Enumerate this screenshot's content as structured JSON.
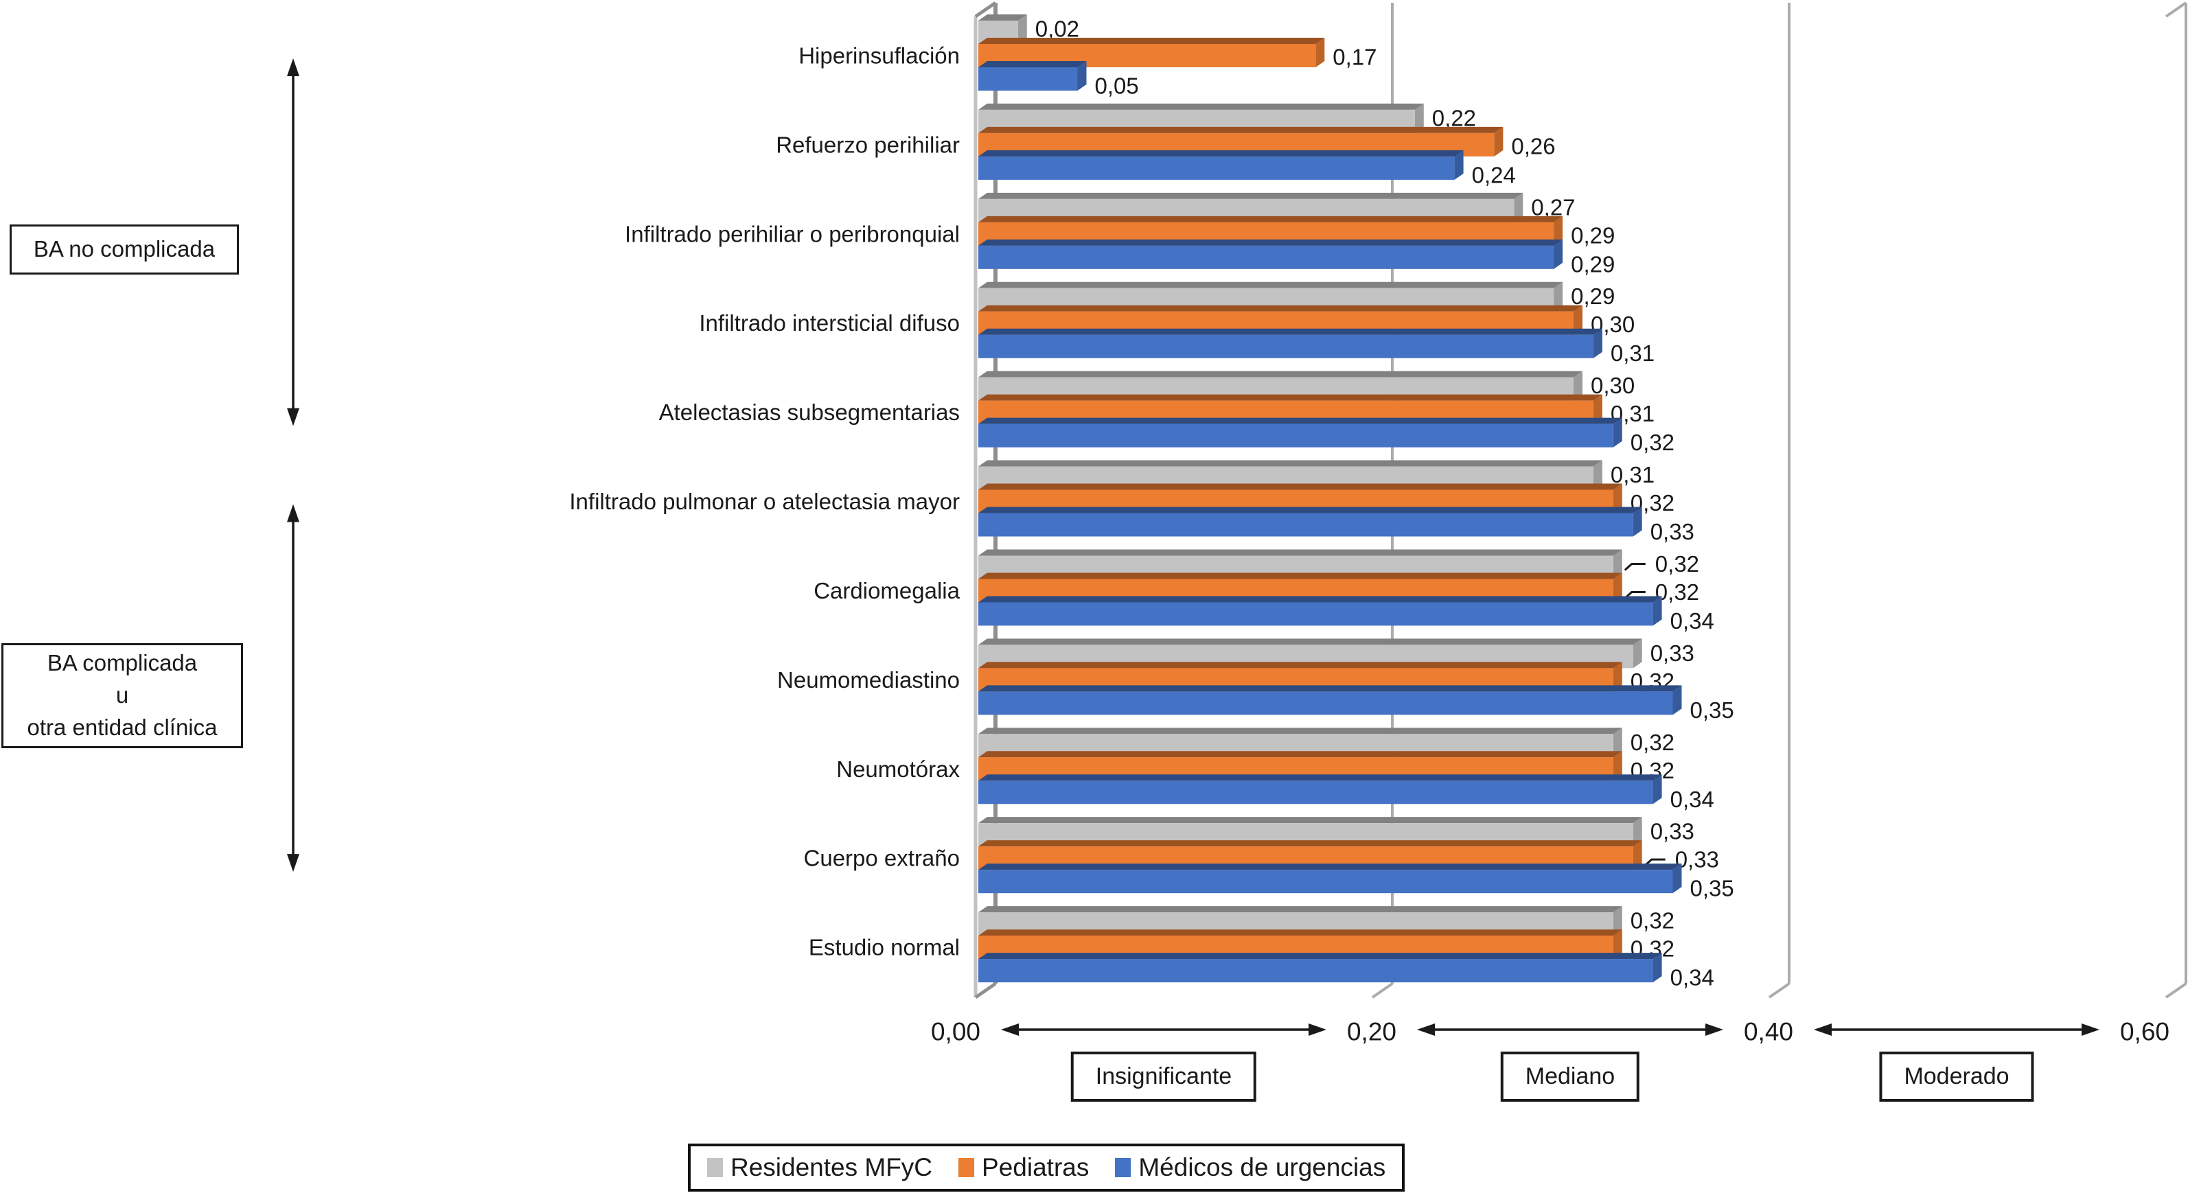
{
  "figure": {
    "background": "#ffffff"
  },
  "annotations": {
    "box1": {
      "label": "BA no complicada"
    },
    "box2": {
      "lines": [
        "BA complicada",
        "u",
        "otra entidad clínica"
      ]
    }
  },
  "chart_data": {
    "type": "bar",
    "orientation": "horizontal",
    "style": "3d",
    "decimal_separator": ",",
    "categories": [
      "Hiperinsuflación",
      "Refuerzo perihiliar",
      "Infiltrado perihiliar o peribronquial",
      "Infiltrado intersticial difuso",
      "Atelectasias subsegmentarias",
      "Infiltrado pulmonar o atelectasia mayor",
      "Cardiomegalia",
      "Neumomediastino",
      "Neumotórax",
      "Cuerpo extraño",
      "Estudio normal"
    ],
    "series": [
      {
        "name": "Residentes MFyC",
        "color": "#C3C3C3",
        "values": [
          0.02,
          0.22,
          0.27,
          0.29,
          0.3,
          0.31,
          0.32,
          0.33,
          0.32,
          0.33,
          0.32
        ]
      },
      {
        "name": "Pediatras",
        "color": "#ED7D31",
        "values": [
          0.17,
          0.26,
          0.29,
          0.3,
          0.31,
          0.32,
          0.32,
          0.32,
          0.32,
          0.33,
          0.32
        ]
      },
      {
        "name": "Médicos de urgencias",
        "color": "#4472C4",
        "values": [
          0.05,
          0.24,
          0.29,
          0.31,
          0.32,
          0.33,
          0.34,
          0.35,
          0.34,
          0.35,
          0.34
        ]
      }
    ],
    "xlim": [
      0,
      0.6
    ],
    "xticks": [
      {
        "value": 0.0,
        "label": "0,00"
      },
      {
        "value": 0.2,
        "label": "0,20"
      },
      {
        "value": 0.4,
        "label": "0,40"
      },
      {
        "value": 0.6,
        "label": "0,60"
      }
    ],
    "x_zones": [
      "Insignificante",
      "Mediano",
      "Moderado"
    ],
    "category_groups": [
      {
        "label": "BA no complicada",
        "from": 0,
        "to": 4
      },
      {
        "label": "BA complicada u otra entidad clínica",
        "from": 5,
        "to": 9
      }
    ],
    "label_leader_lines": [
      {
        "series": 0,
        "category": 6
      },
      {
        "series": 1,
        "category": 6
      },
      {
        "series": 1,
        "category": 9
      }
    ],
    "legend_position": "bottom",
    "grid": "vertical"
  }
}
